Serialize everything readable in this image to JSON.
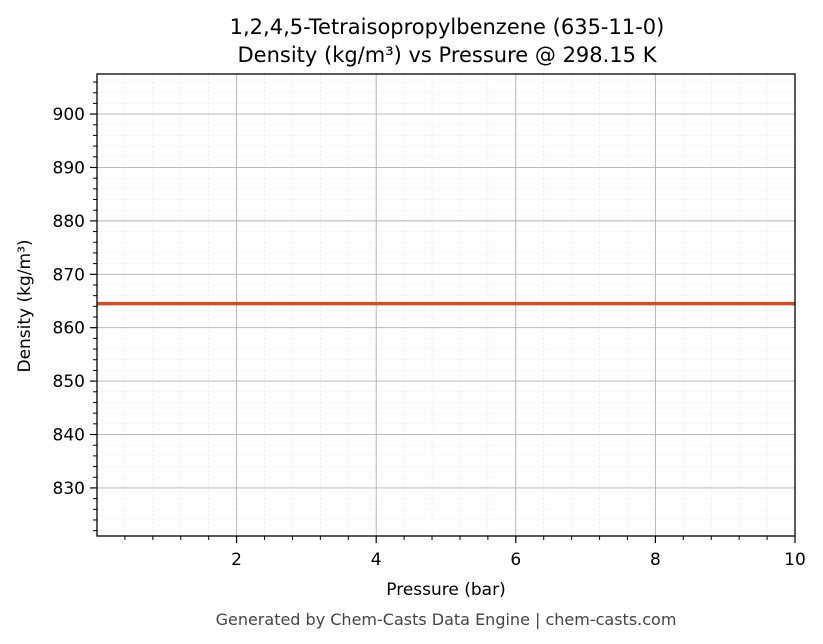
{
  "chart_data": {
    "type": "line",
    "title": "1,2,4,5-Tetraisopropylbenzene (635-11-0)",
    "subtitle": "Density (kg/m³) vs Pressure @ 298.15 K",
    "xlabel": "Pressure (bar)",
    "ylabel": "Density (kg/m³)",
    "xlim": [
      0,
      10
    ],
    "ylim": [
      821,
      907.5
    ],
    "xticks": [
      2,
      4,
      6,
      8,
      10
    ],
    "yticks": [
      830,
      840,
      850,
      860,
      870,
      880,
      890,
      900
    ],
    "grid": true,
    "series": [
      {
        "color": "#c8502a",
        "x": [
          0,
          10
        ],
        "y": [
          864.5,
          864.5
        ]
      }
    ]
  },
  "footer": "Generated by Chem-Casts Data Engine | chem-casts.com"
}
